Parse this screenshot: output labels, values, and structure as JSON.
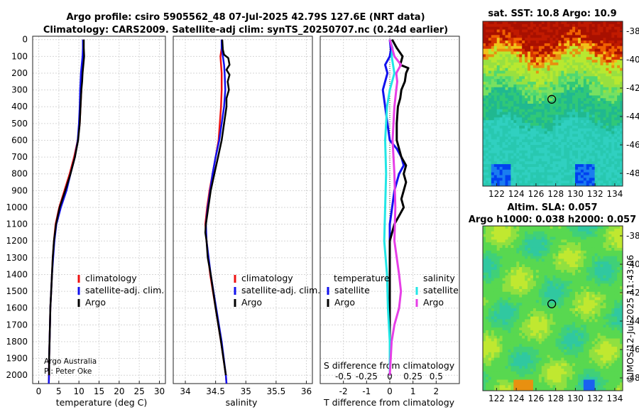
{
  "header": {
    "title_line1": "Argo profile: csiro 5905562_48 07-Jul-2025 42.79S 127.6E (NRT data)",
    "title_line2": "Climatology: CARS2009. Satellite-adj clim: synTS_20250707.nc (0.24d earlier)"
  },
  "colors": {
    "climatology": "#ee1111",
    "satellite": "#1111ee",
    "argo": "#000000",
    "sal_sat": "#22e6e6",
    "sal_argo": "#e63ee6"
  },
  "depth_axis": {
    "ticks": [
      "0",
      "100",
      "200",
      "300",
      "400",
      "500",
      "600",
      "700",
      "800",
      "900",
      "1000",
      "1100",
      "1200",
      "1300",
      "1400",
      "1500",
      "1600",
      "1700",
      "1800",
      "1900",
      "2000"
    ]
  },
  "attribution": {
    "line1": "Argo Australia",
    "line2": "PI: Peter Oke"
  },
  "timestamp": "©IMOS 12-Jul-2025 11:43:06",
  "chart_data": [
    {
      "type": "line",
      "id": "temperature",
      "xlabel": "temperature (deg C)",
      "xlim": [
        -1.5,
        31.5
      ],
      "ylim": [
        2050,
        0
      ],
      "xticks": [
        "0",
        "5",
        "10",
        "15",
        "20",
        "25",
        "30"
      ],
      "legend": [
        "climatology",
        "satellite-adj. clim.",
        "Argo"
      ],
      "series": [
        {
          "name": "climatology",
          "depth": [
            0,
            50,
            100,
            150,
            200,
            300,
            400,
            500,
            600,
            700,
            800,
            900,
            1000,
            1100,
            1200,
            1300,
            1400,
            1500,
            1600,
            1700,
            1800,
            1900,
            2000,
            2050
          ],
          "values": [
            11.1,
            11.1,
            11.0,
            10.8,
            10.7,
            10.6,
            10.4,
            10.2,
            9.7,
            8.8,
            7.7,
            6.4,
            5.1,
            4.2,
            3.8,
            3.5,
            3.3,
            3.1,
            2.9,
            2.8,
            2.7,
            2.6,
            2.55,
            2.5
          ]
        },
        {
          "name": "satellite-adj. clim.",
          "depth": [
            0,
            50,
            100,
            150,
            200,
            300,
            400,
            500,
            600,
            700,
            800,
            900,
            1000,
            1100,
            1200,
            1300,
            1400,
            1500,
            1600,
            1700,
            1800,
            1900,
            2000,
            2050
          ],
          "values": [
            11.0,
            11.0,
            10.9,
            10.7,
            10.5,
            10.3,
            10.2,
            10.0,
            9.7,
            9.0,
            7.9,
            6.9,
            5.5,
            4.4,
            3.9,
            3.6,
            3.3,
            3.1,
            2.9,
            2.8,
            2.7,
            2.6,
            2.55,
            2.5
          ]
        },
        {
          "name": "Argo",
          "depth": [
            0,
            50,
            100,
            150,
            200,
            250,
            300,
            400,
            500,
            600,
            700,
            800,
            900,
            1000,
            1100,
            1200,
            1300,
            1400,
            1500,
            1600,
            1700,
            1800,
            1900,
            2000
          ],
          "values": [
            11.2,
            11.2,
            11.3,
            11.1,
            10.9,
            10.8,
            10.6,
            10.4,
            10.2,
            9.8,
            9.0,
            7.9,
            6.6,
            5.2,
            4.3,
            3.8,
            3.5,
            3.3,
            3.1,
            2.9,
            2.8,
            2.7,
            2.6,
            2.6
          ]
        }
      ]
    },
    {
      "type": "line",
      "id": "salinity",
      "xlabel": "salinity",
      "xlim": [
        33.8,
        36.1
      ],
      "ylim": [
        2050,
        0
      ],
      "xticks": [
        "34",
        "34.5",
        "35",
        "35.5",
        "36"
      ],
      "legend": [
        "climatology",
        "satellite-adj. clim.",
        "Argo"
      ],
      "series": [
        {
          "name": "climatology",
          "depth": [
            0,
            50,
            100,
            200,
            300,
            400,
            500,
            600,
            700,
            800,
            900,
            1000,
            1100,
            1200,
            1400,
            1600,
            1800,
            2000,
            2050
          ],
          "values": [
            34.6,
            34.6,
            34.58,
            34.6,
            34.6,
            34.59,
            34.57,
            34.55,
            34.5,
            34.45,
            34.4,
            34.36,
            34.33,
            34.35,
            34.41,
            34.5,
            34.59,
            34.67,
            34.68
          ]
        },
        {
          "name": "satellite-adj. clim.",
          "depth": [
            0,
            50,
            100,
            150,
            200,
            300,
            400,
            500,
            600,
            700,
            800,
            900,
            1000,
            1100,
            1200,
            1400,
            1600,
            1800,
            2000,
            2050
          ],
          "values": [
            34.6,
            34.6,
            34.62,
            34.64,
            34.65,
            34.66,
            34.64,
            34.6,
            34.56,
            34.5,
            34.45,
            34.41,
            34.37,
            34.34,
            34.35,
            34.42,
            34.51,
            34.6,
            34.67,
            34.68
          ]
        },
        {
          "name": "Argo",
          "depth": [
            0,
            60,
            90,
            110,
            150,
            180,
            210,
            250,
            300,
            350,
            400,
            500,
            600,
            700,
            800,
            900,
            1000,
            1050,
            1100,
            1150,
            1200,
            1300,
            1400,
            1600,
            1800,
            2000
          ],
          "values": [
            34.61,
            34.62,
            34.64,
            34.71,
            34.73,
            34.68,
            34.73,
            34.7,
            34.72,
            34.68,
            34.68,
            34.64,
            34.6,
            34.54,
            34.48,
            34.42,
            34.38,
            34.36,
            34.34,
            34.33,
            34.35,
            34.37,
            34.42,
            34.5,
            34.59,
            34.67
          ]
        }
      ]
    },
    {
      "type": "line",
      "id": "difference",
      "xlabel": "T difference from climatology",
      "xlabel_top": "S difference from climatology",
      "xlim": [
        -3,
        3
      ],
      "ylim": [
        2050,
        0
      ],
      "xticks": [
        "-2",
        "-1",
        "0",
        "1",
        "2"
      ],
      "xticks_top": [
        "-0.5",
        "-0.25",
        "0",
        "0.25",
        "0.5"
      ],
      "legend_headers": [
        "temperature",
        "salinity"
      ],
      "legend": [
        "satellite",
        "Argo",
        "satellite",
        "Argo"
      ],
      "series": [
        {
          "name": "temperature satellite",
          "depth": [
            0,
            60,
            100,
            150,
            200,
            300,
            400,
            500,
            600,
            650,
            700,
            750,
            800,
            900,
            1000,
            1100,
            1200,
            1300,
            1400,
            1500,
            1600,
            1800,
            2000
          ],
          "values": [
            0.0,
            0.05,
            0.0,
            -0.2,
            -0.1,
            -0.3,
            -0.2,
            -0.1,
            0.0,
            0.3,
            0.5,
            0.6,
            0.4,
            0.2,
            0.1,
            0.0,
            0.0,
            0.0,
            0.0,
            0.0,
            0.0,
            0.0,
            0.0
          ]
        },
        {
          "name": "temperature Argo",
          "depth": [
            0,
            50,
            100,
            150,
            170,
            200,
            250,
            300,
            350,
            400,
            500,
            600,
            700,
            750,
            800,
            850,
            900,
            950,
            1000,
            1050,
            1100,
            1200,
            1400,
            1600,
            1800,
            2000
          ],
          "values": [
            0.1,
            0.3,
            0.55,
            0.45,
            0.8,
            0.7,
            0.65,
            0.5,
            0.45,
            0.35,
            0.3,
            0.3,
            0.5,
            0.7,
            0.6,
            0.7,
            0.6,
            0.5,
            0.6,
            0.4,
            0.2,
            0.0,
            0.0,
            0.0,
            0.0,
            0.0
          ]
        },
        {
          "name": "salinity satellite",
          "depth": [
            0,
            50,
            100,
            200,
            300,
            400,
            600,
            800,
            1000,
            1200,
            1400,
            1600,
            1800,
            2000
          ],
          "values": [
            0.0,
            0.03,
            0.02,
            0.05,
            0.0,
            -0.03,
            -0.05,
            -0.04,
            -0.05,
            -0.06,
            -0.03,
            -0.02,
            0.0,
            0.0
          ]
        },
        {
          "name": "salinity Argo",
          "depth": [
            0,
            100,
            150,
            200,
            250,
            300,
            400,
            600,
            800,
            1000,
            1200,
            1400,
            1500,
            1600,
            1700,
            1800,
            2000
          ],
          "values": [
            0.0,
            0.05,
            0.12,
            0.07,
            0.08,
            0.07,
            0.05,
            0.03,
            0.05,
            0.06,
            0.05,
            0.1,
            0.12,
            0.1,
            0.05,
            0.02,
            0.0
          ]
        }
      ]
    },
    {
      "type": "heatmap",
      "id": "sst_map",
      "title": "sat. SST: 10.8 Argo: 10.9",
      "xticks": [
        "122",
        "124",
        "126",
        "128",
        "130",
        "132",
        "134"
      ],
      "yticks": [
        "-38",
        "-40",
        "-42",
        "-44",
        "-46",
        "-48"
      ],
      "xlim": [
        120.6,
        134.8
      ],
      "ylim": [
        -48.9,
        -37.3
      ],
      "marker": {
        "lon": 127.6,
        "lat": -42.79
      }
    },
    {
      "type": "heatmap",
      "id": "sla_map",
      "title_line1": "Altim. SLA: 0.057",
      "title_line2": "Argo h1000: 0.038 h2000: 0.057",
      "xticks": [
        "122",
        "124",
        "126",
        "128",
        "130",
        "132",
        "134"
      ],
      "yticks": [
        "-38",
        "-40",
        "-42",
        "-44",
        "-46",
        "-48"
      ],
      "xlim": [
        120.6,
        134.8
      ],
      "ylim": [
        -48.9,
        -37.3
      ],
      "marker": {
        "lon": 127.6,
        "lat": -42.79
      }
    }
  ]
}
